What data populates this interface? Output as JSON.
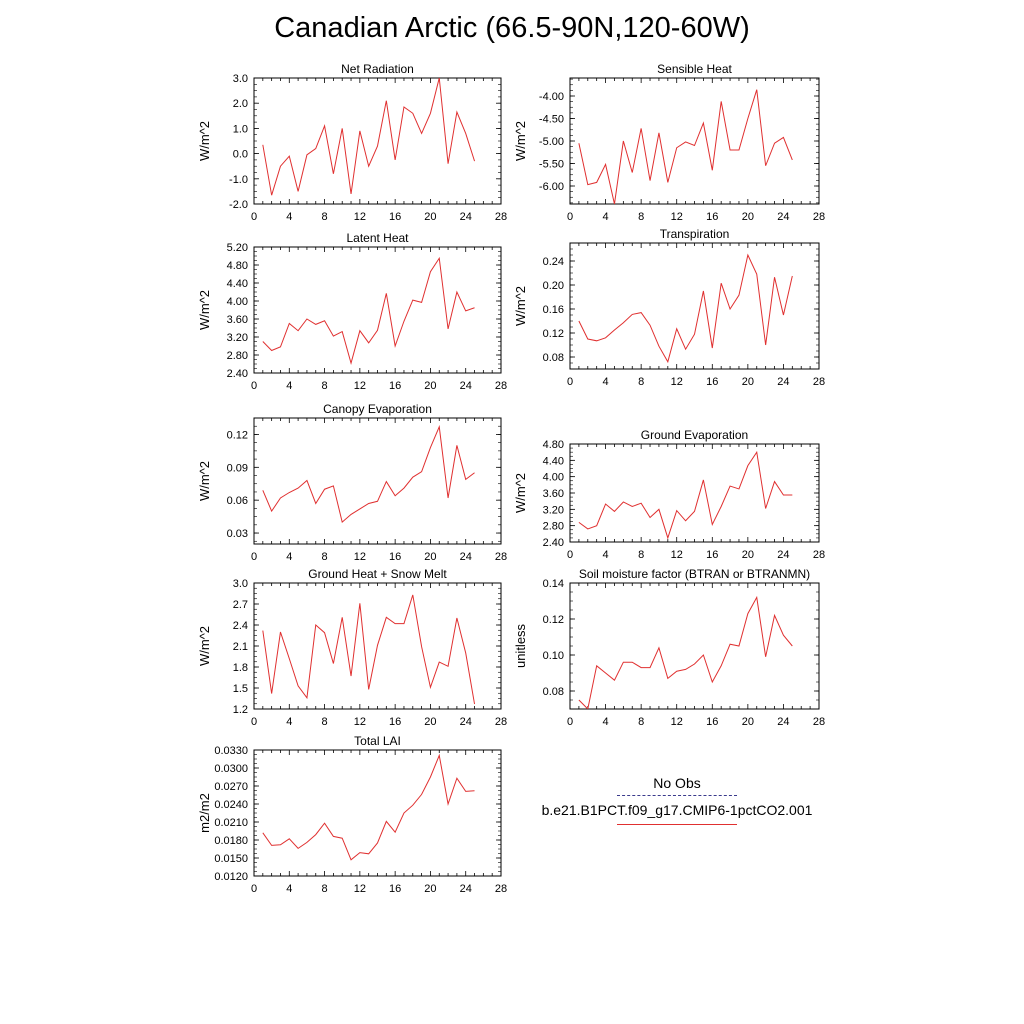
{
  "page": {
    "title": "Canadian Arctic (66.5-90N,120-60W)"
  },
  "legend": {
    "obs_label": "No Obs",
    "model_label": "b.e21.B1PCT.f09_g17.CMIP6-1pctCO2.001",
    "obs_color": "#3a3a8c",
    "model_color": "#e03030"
  },
  "chart_data": [
    {
      "type": "line",
      "title": "Net Radiation",
      "xlabel": "",
      "ylabel": "W/m^2",
      "xlim": [
        0,
        28
      ],
      "ylim": [
        -2.0,
        3.0
      ],
      "xticks": [
        0,
        4,
        8,
        12,
        16,
        20,
        24,
        28
      ],
      "yticks": [
        -2.0,
        -1.0,
        0.0,
        1.0,
        2.0,
        3.0
      ],
      "ytick_labels": [
        "-2.0",
        "-1.0",
        "0.0",
        "1.0",
        "2.0",
        "3.0"
      ],
      "x": [
        1,
        2,
        3,
        4,
        5,
        6,
        7,
        8,
        9,
        10,
        11,
        12,
        13,
        14,
        15,
        16,
        17,
        18,
        19,
        20,
        21,
        22,
        23,
        24,
        25
      ],
      "series": [
        {
          "values": [
            0.35,
            -1.65,
            -0.5,
            -0.1,
            -1.5,
            -0.05,
            0.2,
            1.1,
            -0.8,
            1.0,
            -1.6,
            0.9,
            -0.5,
            0.3,
            2.1,
            -0.25,
            1.85,
            1.6,
            0.8,
            1.6,
            3.0,
            -0.4,
            1.65,
            0.8,
            -0.3
          ]
        }
      ]
    },
    {
      "type": "line",
      "title": "Sensible Heat",
      "xlabel": "",
      "ylabel": "W/m^2",
      "xlim": [
        0,
        28
      ],
      "ylim": [
        -6.4,
        -3.6
      ],
      "xticks": [
        0,
        4,
        8,
        12,
        16,
        20,
        24,
        28
      ],
      "yticks": [
        -6.0,
        -5.5,
        -5.0,
        -4.5,
        -4.0
      ],
      "ytick_labels": [
        "-6.00",
        "-5.50",
        "-5.00",
        "-4.50",
        "-4.00"
      ],
      "x": [
        1,
        2,
        3,
        4,
        5,
        6,
        7,
        8,
        9,
        10,
        11,
        12,
        13,
        14,
        15,
        16,
        17,
        18,
        19,
        20,
        21,
        22,
        23,
        24,
        25
      ],
      "series": [
        {
          "values": [
            -5.05,
            -5.97,
            -5.92,
            -5.52,
            -6.4,
            -5.0,
            -5.7,
            -4.72,
            -5.88,
            -4.82,
            -5.92,
            -5.15,
            -5.02,
            -5.1,
            -4.6,
            -5.65,
            -4.12,
            -5.2,
            -5.2,
            -4.5,
            -3.86,
            -5.55,
            -5.05,
            -4.92,
            -5.42
          ]
        }
      ]
    },
    {
      "type": "line",
      "title": "Latent Heat",
      "xlabel": "",
      "ylabel": "W/m^2",
      "xlim": [
        0,
        28
      ],
      "ylim": [
        2.4,
        5.2
      ],
      "xticks": [
        0,
        4,
        8,
        12,
        16,
        20,
        24,
        28
      ],
      "yticks": [
        2.4,
        2.8,
        3.2,
        3.6,
        4.0,
        4.4,
        4.8,
        5.2
      ],
      "ytick_labels": [
        "2.40",
        "2.80",
        "3.20",
        "3.60",
        "4.00",
        "4.40",
        "4.80",
        "5.20"
      ],
      "x": [
        1,
        2,
        3,
        4,
        5,
        6,
        7,
        8,
        9,
        10,
        11,
        12,
        13,
        14,
        15,
        16,
        17,
        18,
        19,
        20,
        21,
        22,
        23,
        24,
        25
      ],
      "series": [
        {
          "values": [
            3.1,
            2.9,
            2.98,
            3.5,
            3.34,
            3.6,
            3.48,
            3.56,
            3.22,
            3.32,
            2.62,
            3.34,
            3.07,
            3.35,
            4.17,
            3.0,
            3.55,
            4.02,
            3.97,
            4.65,
            4.95,
            3.38,
            4.2,
            3.78,
            3.85
          ]
        }
      ]
    },
    {
      "type": "line",
      "title": "Transpiration",
      "xlabel": "",
      "ylabel": "W/m^2",
      "xlim": [
        0,
        28
      ],
      "ylim": [
        0.06,
        0.27
      ],
      "xticks": [
        0,
        4,
        8,
        12,
        16,
        20,
        24,
        28
      ],
      "yticks": [
        0.08,
        0.12,
        0.16,
        0.2,
        0.24
      ],
      "ytick_labels": [
        "0.08",
        "0.12",
        "0.16",
        "0.20",
        "0.24"
      ],
      "x": [
        1,
        2,
        3,
        4,
        5,
        6,
        7,
        8,
        9,
        10,
        11,
        12,
        13,
        14,
        15,
        16,
        17,
        18,
        19,
        20,
        21,
        22,
        23,
        24,
        25
      ],
      "series": [
        {
          "values": [
            0.14,
            0.11,
            0.107,
            0.112,
            0.125,
            0.137,
            0.151,
            0.154,
            0.133,
            0.098,
            0.072,
            0.127,
            0.093,
            0.118,
            0.19,
            0.095,
            0.203,
            0.16,
            0.183,
            0.25,
            0.218,
            0.1,
            0.213,
            0.15,
            0.215
          ]
        }
      ]
    },
    {
      "type": "line",
      "title": "Canopy Evaporation",
      "xlabel": "",
      "ylabel": "W/m^2",
      "xlim": [
        0,
        28
      ],
      "ylim": [
        0.02,
        0.135
      ],
      "xticks": [
        0,
        4,
        8,
        12,
        16,
        20,
        24,
        28
      ],
      "yticks": [
        0.03,
        0.06,
        0.09,
        0.12
      ],
      "ytick_labels": [
        "0.03",
        "0.06",
        "0.09",
        "0.12"
      ],
      "x": [
        1,
        2,
        3,
        4,
        5,
        6,
        7,
        8,
        9,
        10,
        11,
        12,
        13,
        14,
        15,
        16,
        17,
        18,
        19,
        20,
        21,
        22,
        23,
        24,
        25
      ],
      "series": [
        {
          "values": [
            0.069,
            0.05,
            0.062,
            0.067,
            0.071,
            0.078,
            0.057,
            0.07,
            0.073,
            0.04,
            0.047,
            0.052,
            0.057,
            0.059,
            0.077,
            0.064,
            0.071,
            0.081,
            0.086,
            0.108,
            0.127,
            0.062,
            0.11,
            0.079,
            0.085
          ]
        }
      ]
    },
    {
      "type": "line",
      "title": "Ground Evaporation",
      "xlabel": "",
      "ylabel": "W/m^2",
      "xlim": [
        0,
        28
      ],
      "ylim": [
        2.4,
        4.8
      ],
      "xticks": [
        0,
        4,
        8,
        12,
        16,
        20,
        24,
        28
      ],
      "yticks": [
        2.4,
        2.8,
        3.2,
        3.6,
        4.0,
        4.4,
        4.8
      ],
      "ytick_labels": [
        "2.40",
        "2.80",
        "3.20",
        "3.60",
        "4.00",
        "4.40",
        "4.80"
      ],
      "x": [
        1,
        2,
        3,
        4,
        5,
        6,
        7,
        8,
        9,
        10,
        11,
        12,
        13,
        14,
        15,
        16,
        17,
        18,
        19,
        20,
        21,
        22,
        23,
        24,
        25
      ],
      "series": [
        {
          "values": [
            2.88,
            2.72,
            2.8,
            3.33,
            3.15,
            3.38,
            3.27,
            3.35,
            3.0,
            3.2,
            2.5,
            3.17,
            2.92,
            3.15,
            3.92,
            2.83,
            3.27,
            3.77,
            3.7,
            4.27,
            4.6,
            3.22,
            3.88,
            3.55,
            3.55
          ]
        }
      ]
    },
    {
      "type": "line",
      "title": "Ground Heat + Snow Melt",
      "xlabel": "",
      "ylabel": "W/m^2",
      "xlim": [
        0,
        28
      ],
      "ylim": [
        1.2,
        3.0
      ],
      "xticks": [
        0,
        4,
        8,
        12,
        16,
        20,
        24,
        28
      ],
      "yticks": [
        1.2,
        1.5,
        1.8,
        2.1,
        2.4,
        2.7,
        3.0
      ],
      "ytick_labels": [
        "1.2",
        "1.5",
        "1.8",
        "2.1",
        "2.4",
        "2.7",
        "3.0"
      ],
      "x": [
        1,
        2,
        3,
        4,
        5,
        6,
        7,
        8,
        9,
        10,
        11,
        12,
        13,
        14,
        15,
        16,
        17,
        18,
        19,
        20,
        21,
        22,
        23,
        24,
        25
      ],
      "series": [
        {
          "values": [
            2.32,
            1.42,
            2.3,
            1.92,
            1.53,
            1.36,
            2.4,
            2.29,
            1.85,
            2.51,
            1.67,
            2.71,
            1.48,
            2.11,
            2.51,
            2.42,
            2.42,
            2.83,
            2.09,
            1.51,
            1.87,
            1.81,
            2.5,
            2.0,
            1.27
          ]
        }
      ]
    },
    {
      "type": "line",
      "title": "Soil moisture factor (BTRAN or BTRANMN)",
      "xlabel": "",
      "ylabel": "unitless",
      "xlim": [
        0,
        28
      ],
      "ylim": [
        0.07,
        0.14
      ],
      "xticks": [
        0,
        4,
        8,
        12,
        16,
        20,
        24,
        28
      ],
      "yticks": [
        0.08,
        0.1,
        0.12,
        0.14
      ],
      "ytick_labels": [
        "0.08",
        "0.10",
        "0.12",
        "0.14"
      ],
      "x": [
        1,
        2,
        3,
        4,
        5,
        6,
        7,
        8,
        9,
        10,
        11,
        12,
        13,
        14,
        15,
        16,
        17,
        18,
        19,
        20,
        21,
        22,
        23,
        24,
        25
      ],
      "series": [
        {
          "values": [
            0.075,
            0.07,
            0.094,
            0.09,
            0.086,
            0.096,
            0.096,
            0.093,
            0.093,
            0.104,
            0.087,
            0.091,
            0.092,
            0.095,
            0.1,
            0.085,
            0.094,
            0.106,
            0.105,
            0.123,
            0.132,
            0.099,
            0.122,
            0.111,
            0.105
          ]
        }
      ]
    },
    {
      "type": "line",
      "title": "Total LAI",
      "xlabel": "",
      "ylabel": "m2/m2",
      "xlim": [
        0,
        28
      ],
      "ylim": [
        0.012,
        0.033
      ],
      "xticks": [
        0,
        4,
        8,
        12,
        16,
        20,
        24,
        28
      ],
      "yticks": [
        0.012,
        0.015,
        0.018,
        0.021,
        0.024,
        0.027,
        0.03,
        0.033
      ],
      "ytick_labels": [
        "0.0120",
        "0.0150",
        "0.0180",
        "0.0210",
        "0.0240",
        "0.0270",
        "0.0300",
        "0.0330"
      ],
      "x": [
        1,
        2,
        3,
        4,
        5,
        6,
        7,
        8,
        9,
        10,
        11,
        12,
        13,
        14,
        15,
        16,
        17,
        18,
        19,
        20,
        21,
        22,
        23,
        24,
        25
      ],
      "series": [
        {
          "values": [
            0.0192,
            0.0171,
            0.0172,
            0.0182,
            0.0166,
            0.0176,
            0.0189,
            0.0208,
            0.0186,
            0.0183,
            0.0147,
            0.0159,
            0.0157,
            0.0175,
            0.0211,
            0.0193,
            0.0225,
            0.0238,
            0.0256,
            0.0285,
            0.0321,
            0.024,
            0.0283,
            0.0261,
            0.0262
          ]
        }
      ]
    }
  ]
}
